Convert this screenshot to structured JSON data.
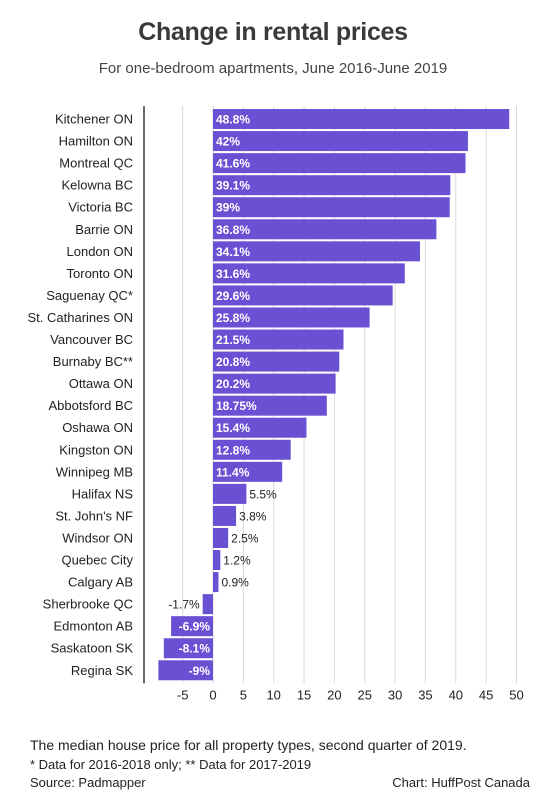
{
  "header": {
    "title": "Change in rental prices",
    "subtitle": "For one-bedroom apartments, June 2016-June 2019"
  },
  "footer": {
    "note": "The median house price for all property types, second quarter of 2019.",
    "footnote": "* Data for 2016-2018 only;  ** Data for 2017-2019",
    "source": "Source: Padmapper",
    "credit": "Chart: HuffPost Canada"
  },
  "chart_data": {
    "type": "bar",
    "orientation": "horizontal",
    "categories": [
      "Kitchener ON",
      "Hamilton ON",
      "Montreal QC",
      "Kelowna BC",
      "Victoria BC",
      "Barrie ON",
      "London ON",
      "Toronto ON",
      "Saguenay QC*",
      "St. Catharines ON",
      "Vancouver BC",
      "Burnaby BC**",
      "Ottawa ON",
      "Abbotsford BC",
      "Oshawa ON",
      "Kingston ON",
      "Winnipeg MB",
      "Halifax NS",
      "St. John's NF",
      "Windsor ON",
      "Quebec City",
      "Calgary AB",
      "Sherbrooke QC",
      "Edmonton AB",
      "Saskatoon SK",
      "Regina SK"
    ],
    "values": [
      48.8,
      42,
      41.6,
      39.1,
      39,
      36.8,
      34.1,
      31.6,
      29.6,
      25.8,
      21.5,
      20.8,
      20.2,
      18.75,
      15.4,
      12.8,
      11.4,
      5.5,
      3.8,
      2.5,
      1.2,
      0.9,
      -1.7,
      -6.9,
      -8.1,
      -9
    ],
    "labels": [
      "48.8%",
      "42%",
      "41.6%",
      "39.1%",
      "39%",
      "36.8%",
      "34.1%",
      "31.6%",
      "29.6%",
      "25.8%",
      "21.5%",
      "20.8%",
      "20.2%",
      "18.75%",
      "15.4%",
      "12.8%",
      "11.4%",
      "5.5%",
      "3.8%",
      "2.5%",
      "1.2%",
      "0.9%",
      "-1.7%",
      "-6.9%",
      "-8.1%",
      "-9%"
    ],
    "xticks": [
      -5,
      0,
      5,
      10,
      15,
      20,
      25,
      30,
      35,
      40,
      45,
      50
    ],
    "xlim": [
      -9,
      50.5
    ],
    "grid": true,
    "bar_color": "#6a50d3"
  }
}
